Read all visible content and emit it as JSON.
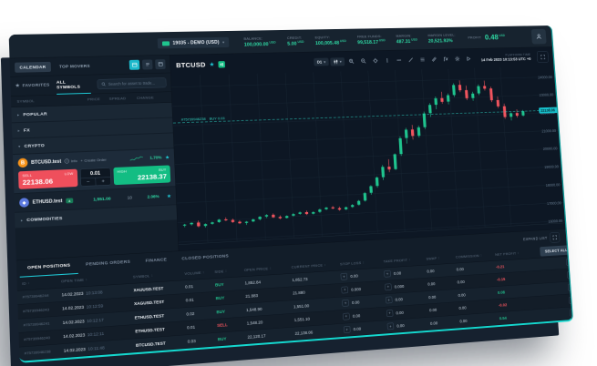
{
  "topbar": {
    "account": {
      "label": "19035 - DEMO (USD)"
    },
    "metrics": [
      {
        "label": "BALANCE:",
        "value": "100,000.00",
        "unit": "USD"
      },
      {
        "label": "CREDIT:",
        "value": "5.00",
        "unit": "USD"
      },
      {
        "label": "EQUITY:",
        "value": "100,005.48",
        "unit": "USD"
      },
      {
        "label": "FREE FUNDS:",
        "value": "99,518.17",
        "unit": "USD"
      },
      {
        "label": "MARGIN:",
        "value": "487.31",
        "unit": "USD"
      },
      {
        "label": "MARGIN LEVEL:",
        "value": "20,521.93%",
        "unit": ""
      }
    ],
    "profit": {
      "label": "PROFIT:",
      "value": "0.48",
      "unit": "USD"
    }
  },
  "platform_time": {
    "label": "PLATFORM TIME",
    "value": "14 Feb 2023 10:13:53 UTC +0"
  },
  "sidebar": {
    "calendar_button": "CALENDAR",
    "top_movers_button": "TOP MOVERS",
    "tabs": [
      {
        "label": "FAVORITES"
      },
      {
        "label": "ALL SYMBOLS"
      }
    ],
    "active_tab": 1,
    "search_placeholder": "Search for asset to trade...",
    "columns": [
      "SYMBOL",
      "PRICE",
      "SPREAD",
      "CHANGE"
    ],
    "groups": [
      {
        "name": "POPULAR",
        "expanded": false
      },
      {
        "name": "FX",
        "expanded": false
      },
      {
        "name": "CRYPTO",
        "expanded": true
      },
      {
        "name": "COMMODITIES",
        "expanded": false
      }
    ],
    "btc": {
      "name": "BTCUSD.test",
      "info_label": "Info",
      "create_order_label": "Create Order",
      "change": "1.70%",
      "sell_label": "SELL",
      "low_label": "LOW",
      "sell_price": "22138.06",
      "buy_label": "BUY",
      "high_label": "HIGH",
      "buy_price": "22138.37",
      "volume": "0.01"
    },
    "eth": {
      "name": "ETHUSD.test",
      "trend_badge": "▲",
      "price": "1,551.00",
      "spread": "10",
      "change": "2.06%"
    }
  },
  "chart": {
    "symbol": "BTCUSD",
    "timeframe": "D1",
    "position_id": "#75739946238",
    "position_side_vol": "BUY 0.03",
    "price_line": "22138.06"
  },
  "chart_data": {
    "type": "candlestick",
    "title": "BTCUSD D1",
    "y_ticks": [
      "24000.00",
      "23000.00",
      "22000.00",
      "21000.00",
      "20000.00",
      "19000.00",
      "18000.00",
      "17000.00",
      "16000.00"
    ],
    "y_range": [
      15900,
      24600
    ],
    "current_price": 22138.06,
    "candles": [
      [
        16840,
        16920,
        16750,
        16880
      ],
      [
        16880,
        16980,
        16820,
        16950
      ],
      [
        16950,
        17050,
        16700,
        16760
      ],
      [
        16760,
        16890,
        16680,
        16850
      ],
      [
        16850,
        16960,
        16800,
        16920
      ],
      [
        16920,
        17080,
        16880,
        17040
      ],
      [
        17040,
        17140,
        16950,
        16990
      ],
      [
        16990,
        17060,
        16840,
        16880
      ],
      [
        16880,
        16950,
        16760,
        16800
      ],
      [
        16800,
        16900,
        16700,
        16860
      ],
      [
        16860,
        17000,
        16820,
        16960
      ],
      [
        16960,
        17120,
        16900,
        17080
      ],
      [
        17080,
        17200,
        17000,
        17150
      ],
      [
        17150,
        17220,
        16980,
        17020
      ],
      [
        17020,
        17100,
        16900,
        16950
      ],
      [
        16950,
        17080,
        16920,
        17050
      ],
      [
        17050,
        17180,
        17010,
        17130
      ],
      [
        17130,
        17250,
        17080,
        17200
      ],
      [
        17200,
        17280,
        17050,
        17100
      ],
      [
        17100,
        17220,
        17060,
        17180
      ],
      [
        17180,
        17340,
        17120,
        17300
      ],
      [
        17300,
        17420,
        17250,
        17380
      ],
      [
        17380,
        17450,
        17280,
        17320
      ],
      [
        17320,
        17400,
        17180,
        17240
      ],
      [
        17240,
        17380,
        17200,
        17350
      ],
      [
        17350,
        17500,
        17300,
        17450
      ],
      [
        17450,
        17700,
        17400,
        17650
      ],
      [
        17650,
        18100,
        17600,
        18050
      ],
      [
        18050,
        18450,
        17950,
        18400
      ],
      [
        18400,
        18900,
        18300,
        18850
      ],
      [
        18850,
        19500,
        18700,
        19400
      ],
      [
        19400,
        19800,
        19100,
        19250
      ],
      [
        19250,
        20100,
        19200,
        20050
      ],
      [
        20050,
        21000,
        19950,
        20900
      ],
      [
        20900,
        21450,
        20600,
        21350
      ],
      [
        21350,
        21600,
        20800,
        21000
      ],
      [
        21000,
        21550,
        20900,
        21450
      ],
      [
        21450,
        22300,
        21350,
        22200
      ],
      [
        22200,
        22750,
        22000,
        22650
      ],
      [
        22650,
        23100,
        22400,
        23000
      ],
      [
        23000,
        23350,
        22700,
        22800
      ],
      [
        22800,
        23250,
        22650,
        23150
      ],
      [
        23150,
        23800,
        23050,
        23700
      ],
      [
        23700,
        23950,
        23300,
        23400
      ],
      [
        23400,
        23650,
        22850,
        22950
      ],
      [
        22950,
        23300,
        22800,
        23200
      ],
      [
        23200,
        23700,
        23100,
        23600
      ],
      [
        23600,
        23900,
        23350,
        23450
      ],
      [
        23450,
        23550,
        22700,
        22800
      ],
      [
        22800,
        23000,
        22350,
        22450
      ],
      [
        22450,
        22600,
        21750,
        21850
      ],
      [
        21850,
        22100,
        21650,
        22050
      ],
      [
        22050,
        22250,
        21800,
        21900
      ],
      [
        21900,
        22200,
        21850,
        22138
      ]
    ]
  },
  "positions": {
    "tabs": [
      "OPEN POSITIONS",
      "PENDING ORDERS",
      "FINANCE",
      "CLOSED POSITIONS"
    ],
    "active_tab": 0,
    "expand_list_label": "EXPAND LIST",
    "select_all_label": "SELECT ALL",
    "columns": [
      "ID",
      "OPEN TIME",
      "SYMBOL",
      "VOLUME",
      "SIDE",
      "OPEN PRICE",
      "CURRENT PRICE",
      "STOP LOSS",
      "TAKE PROFIT",
      "SWAP",
      "COMMISSION",
      "NET PROFIT"
    ],
    "rows": [
      {
        "id": "#75739946244",
        "date": "14.02.2023",
        "time": "10:13:08",
        "symbol": "XAUUSD.TEST",
        "volume": "0.01",
        "side": "BUY",
        "open_price": "1,852.84",
        "current_price": "1,852.73",
        "stop_loss": "0.00",
        "take_profit": "0.00",
        "swap": "0.00",
        "commission": "0.00",
        "net_profit": "-0.21"
      },
      {
        "id": "#75739946243",
        "date": "14.02.2023",
        "time": "10:12:59",
        "symbol": "XAGUSD.TEST",
        "volume": "0.01",
        "side": "BUY",
        "open_price": "21.883",
        "current_price": "21.880",
        "stop_loss": "0.000",
        "take_profit": "0.000",
        "swap": "0.00",
        "commission": "0.00",
        "net_profit": "-0.15"
      },
      {
        "id": "#75739946241",
        "date": "14.02.2023",
        "time": "10:12:17",
        "symbol": "ETHUSD.TEST",
        "volume": "0.02",
        "side": "BUY",
        "open_price": "1,548.90",
        "current_price": "1,551.00",
        "stop_loss": "0.00",
        "take_profit": "0.00",
        "swap": "0.00",
        "commission": "0.00",
        "net_profit": "0.08"
      },
      {
        "id": "#75739946240",
        "date": "14.02.2023",
        "time": "10:12:11",
        "symbol": "ETHUSD.TEST",
        "volume": "0.01",
        "side": "SELL",
        "open_price": "1,548.20",
        "current_price": "1,551.10",
        "stop_loss": "0.00",
        "take_profit": "0.00",
        "swap": "0.00",
        "commission": "0.00",
        "net_profit": "-0.02"
      },
      {
        "id": "#75739946238",
        "date": "14.02.2023",
        "time": "10:11:48",
        "symbol": "BTCUSD.TEST",
        "volume": "0.03",
        "side": "BUY",
        "open_price": "22,120.17",
        "current_price": "22,138.06",
        "stop_loss": "0.00",
        "take_profit": "0.00",
        "swap": "0.00",
        "commission": "0.00",
        "net_profit": "0.54"
      }
    ]
  },
  "colors": {
    "accent_cyan": "#1fc9d6",
    "green": "#1fc48e",
    "red": "#f0545e",
    "grid": "#1b2936",
    "price_line": "#2fd8c8"
  }
}
